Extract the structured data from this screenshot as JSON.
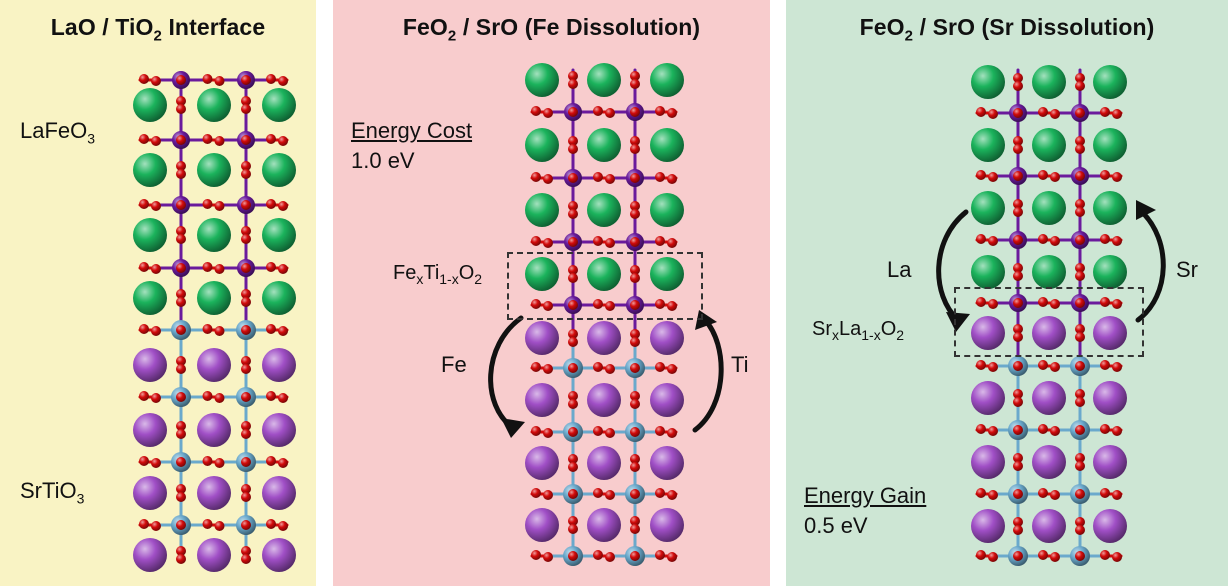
{
  "panels": [
    {
      "background": "#f9f3c4",
      "title": {
        "main": "LaO / TiO",
        "sub": "2",
        "tail": " Interface"
      },
      "labels": {
        "top": {
          "main": "LaFeO",
          "sub": "3"
        },
        "bottom": {
          "main": "SrTiO",
          "sub": "3"
        }
      }
    },
    {
      "background": "#f8cccd",
      "title": {
        "main": "FeO",
        "sub": "2",
        "tail": " / SrO (Fe Dissolution)"
      },
      "energy": {
        "heading": "Energy Cost",
        "value": "1.0 eV"
      },
      "interface_label": {
        "p1": "Fe",
        "s1": "x",
        "p2": "Ti",
        "s2": "1-x",
        "p3": "O",
        "s3": "2"
      },
      "arrows": {
        "left": "Fe",
        "right": "Ti"
      }
    },
    {
      "background": "#cde6d4",
      "title": {
        "main": "FeO",
        "sub": "2",
        "tail": " / SrO (Sr Dissolution)"
      },
      "energy": {
        "heading": "Energy Gain",
        "value": "0.5 eV"
      },
      "interface_label": {
        "p1": "Sr",
        "s1": "x",
        "p2": "La",
        "s2": "1-x",
        "p3": "O",
        "s3": "2"
      },
      "arrows": {
        "left": "La",
        "right": "Sr"
      }
    }
  ],
  "atom_colors": {
    "La": "#1bb35c",
    "Sr": "#a04fc6",
    "Fe": "#6a1a9c",
    "Ti": "#6aa9cc",
    "O": "#d40b0b"
  }
}
